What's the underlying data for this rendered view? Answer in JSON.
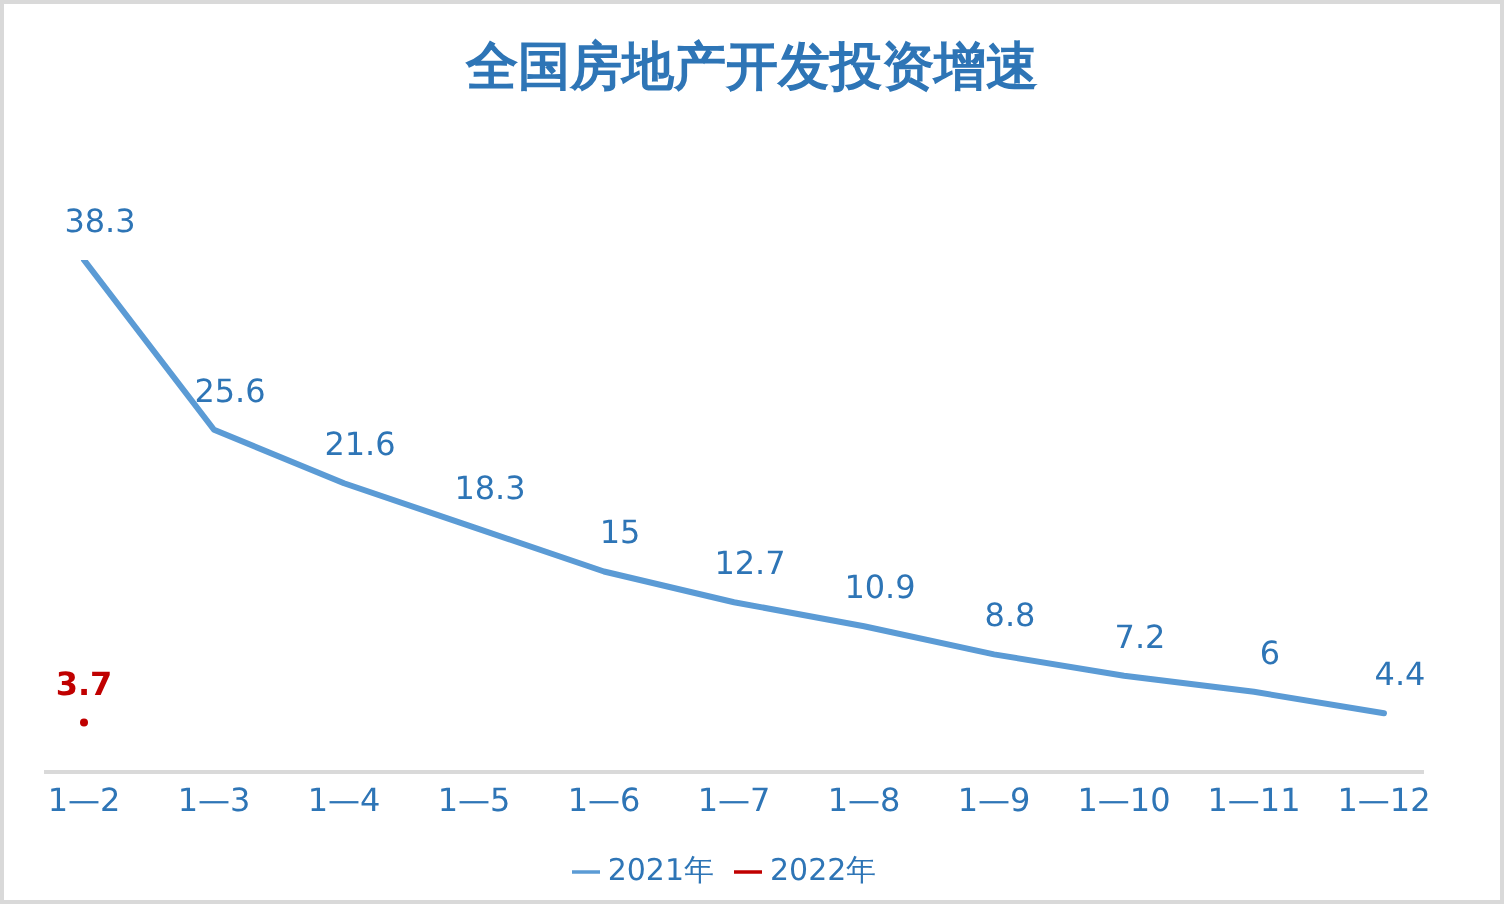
{
  "chart_data": {
    "type": "line",
    "title": "全国房地产开发投资增速",
    "categories": [
      "1—2",
      "1—3",
      "1—4",
      "1—5",
      "1—6",
      "1—7",
      "1—8",
      "1—9",
      "1—10",
      "1—11",
      "1—12"
    ],
    "series": [
      {
        "name": "2021年",
        "color": "#5b9bd5",
        "marker": "none",
        "values": [
          38.3,
          25.6,
          21.6,
          18.3,
          15,
          12.7,
          10.9,
          8.8,
          7.2,
          6,
          4.4
        ]
      },
      {
        "name": "2022年",
        "color": "#c00000",
        "marker": "circle",
        "values": [
          3.7,
          null,
          null,
          null,
          null,
          null,
          null,
          null,
          null,
          null,
          null
        ]
      }
    ],
    "tick_labels": "x",
    "data_labels": true,
    "grid": false,
    "legend": "bottom",
    "line_style": "solid"
  }
}
